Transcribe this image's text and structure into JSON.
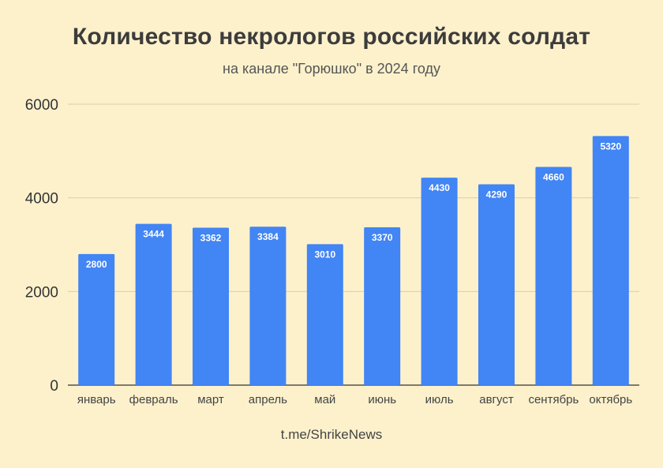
{
  "chart_data": {
    "type": "bar",
    "title": "Количество некрологов российских солдат",
    "subtitle": "на канале \"Горюшко\" в 2024 году",
    "source": "t.me/ShrikeNews",
    "categories": [
      "январь",
      "февраль",
      "март",
      "апрель",
      "май",
      "июнь",
      "июль",
      "август",
      "сентябрь",
      "октябрь"
    ],
    "values": [
      2800,
      3444,
      3362,
      3384,
      3010,
      3370,
      4430,
      4290,
      4660,
      5320
    ],
    "ylim": [
      0,
      6000
    ],
    "yticks": [
      0,
      2000,
      4000,
      6000
    ],
    "xlabel": "",
    "ylabel": "",
    "grid": true,
    "bar_color": "#4285f4",
    "grid_color": "#d9cfa8",
    "background": "#fdf1cc"
  }
}
